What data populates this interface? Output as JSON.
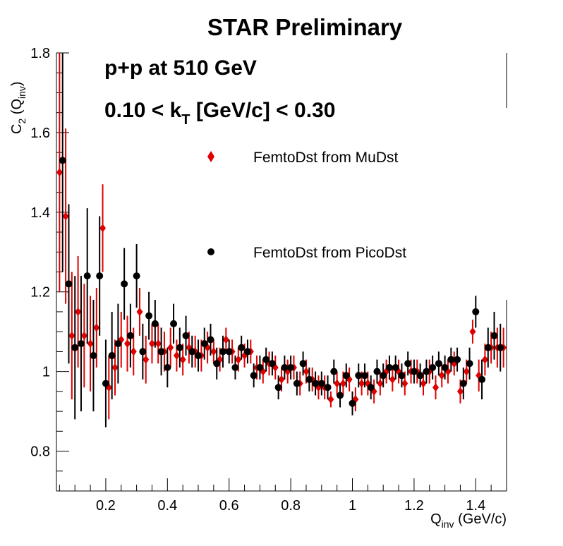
{
  "chart_data": {
    "type": "scatter",
    "title": "STAR Preliminary",
    "annotations": {
      "line1": "p+p at 510 GeV",
      "line2_pre": "0.10 < k",
      "line2_sub": "T",
      "line2_post": " [GeV/c] < 0.30"
    },
    "xlabel": {
      "main": "Q",
      "sub": "inv",
      "rest": " (GeV/c)"
    },
    "ylabel": {
      "main": "C",
      "sub2": "2",
      "mid": " (Q",
      "sub": "inv",
      "rest": ")"
    },
    "xlim": [
      0.04,
      1.5
    ],
    "ylim": [
      0.7,
      1.8
    ],
    "xticks": [
      0.2,
      0.4,
      0.6,
      0.8,
      1.0,
      1.2,
      1.4
    ],
    "xtick_labels": [
      "0.2",
      "0.4",
      "0.6",
      "0.8",
      "1",
      "1.2",
      "1.4"
    ],
    "yticks": [
      0.8,
      1.0,
      1.2,
      1.4,
      1.6,
      1.8
    ],
    "ytick_labels": [
      "0.8",
      "1",
      "1.2",
      "1.4",
      "1.6",
      "1.8"
    ],
    "legend_position": "right, upper-middle",
    "series": [
      {
        "name": "FemtoDst from MuDst",
        "marker": "diamond",
        "color": "#e00000",
        "x": [
          0.05,
          0.07,
          0.09,
          0.11,
          0.13,
          0.15,
          0.17,
          0.19,
          0.21,
          0.23,
          0.25,
          0.27,
          0.29,
          0.31,
          0.33,
          0.35,
          0.37,
          0.39,
          0.41,
          0.43,
          0.45,
          0.47,
          0.49,
          0.51,
          0.53,
          0.55,
          0.57,
          0.59,
          0.61,
          0.63,
          0.65,
          0.67,
          0.69,
          0.71,
          0.73,
          0.75,
          0.77,
          0.79,
          0.81,
          0.83,
          0.85,
          0.87,
          0.89,
          0.91,
          0.93,
          0.95,
          0.97,
          0.99,
          1.01,
          1.03,
          1.05,
          1.07,
          1.09,
          1.11,
          1.13,
          1.15,
          1.17,
          1.19,
          1.21,
          1.23,
          1.25,
          1.27,
          1.29,
          1.31,
          1.33,
          1.35,
          1.37,
          1.39,
          1.41,
          1.43,
          1.45,
          1.47,
          1.49
        ],
        "y": [
          1.5,
          1.39,
          1.09,
          1.15,
          1.09,
          1.07,
          1.11,
          1.36,
          0.96,
          1.01,
          1.08,
          1.07,
          1.05,
          1.15,
          1.03,
          1.07,
          1.07,
          1.05,
          1.06,
          1.04,
          1.03,
          1.06,
          1.05,
          1.04,
          1.06,
          1.05,
          1.03,
          1.08,
          1.05,
          1.03,
          1.04,
          1.05,
          1.01,
          1.0,
          1.02,
          1.01,
          0.98,
          1.0,
          1.01,
          0.97,
          1.0,
          0.98,
          0.96,
          0.96,
          0.93,
          0.97,
          0.97,
          0.98,
          0.93,
          0.97,
          0.97,
          0.95,
          0.97,
          1.0,
          0.98,
          1.0,
          0.97,
          1.0,
          1.0,
          0.97,
          1.0,
          0.96,
          0.99,
          1.0,
          1.02,
          0.95,
          1.0,
          1.1,
          0.99,
          1.03,
          1.06,
          1.06,
          1.06
        ],
        "err": [
          0.3,
          0.22,
          0.16,
          0.14,
          0.13,
          0.12,
          0.1,
          0.11,
          0.08,
          0.07,
          0.07,
          0.07,
          0.06,
          0.06,
          0.06,
          0.05,
          0.05,
          0.05,
          0.05,
          0.04,
          0.04,
          0.04,
          0.04,
          0.04,
          0.04,
          0.03,
          0.03,
          0.03,
          0.03,
          0.03,
          0.03,
          0.03,
          0.03,
          0.03,
          0.03,
          0.03,
          0.03,
          0.03,
          0.03,
          0.03,
          0.03,
          0.03,
          0.03,
          0.03,
          0.02,
          0.03,
          0.03,
          0.03,
          0.03,
          0.03,
          0.03,
          0.03,
          0.03,
          0.03,
          0.03,
          0.03,
          0.03,
          0.03,
          0.03,
          0.03,
          0.03,
          0.03,
          0.03,
          0.03,
          0.03,
          0.03,
          0.03,
          0.03,
          0.04,
          0.04,
          0.04,
          0.05,
          0.05
        ]
      },
      {
        "name": "FemtoDst from PicoDst",
        "marker": "circle",
        "color": "#000000",
        "x": [
          0.06,
          0.08,
          0.1,
          0.12,
          0.14,
          0.16,
          0.18,
          0.2,
          0.22,
          0.24,
          0.26,
          0.28,
          0.3,
          0.32,
          0.34,
          0.36,
          0.38,
          0.4,
          0.42,
          0.44,
          0.46,
          0.48,
          0.5,
          0.52,
          0.54,
          0.56,
          0.58,
          0.6,
          0.62,
          0.64,
          0.66,
          0.68,
          0.7,
          0.72,
          0.74,
          0.76,
          0.78,
          0.8,
          0.82,
          0.84,
          0.86,
          0.88,
          0.9,
          0.92,
          0.94,
          0.96,
          0.98,
          1.0,
          1.02,
          1.04,
          1.06,
          1.08,
          1.1,
          1.12,
          1.14,
          1.16,
          1.18,
          1.2,
          1.22,
          1.24,
          1.26,
          1.28,
          1.3,
          1.32,
          1.34,
          1.36,
          1.38,
          1.4,
          1.42,
          1.44,
          1.46,
          1.48
        ],
        "y": [
          1.53,
          1.22,
          1.06,
          1.07,
          1.24,
          1.04,
          1.24,
          0.97,
          1.04,
          1.07,
          1.22,
          1.09,
          1.24,
          1.05,
          1.14,
          1.12,
          1.05,
          1.01,
          1.12,
          1.06,
          1.09,
          1.05,
          1.04,
          1.07,
          1.08,
          1.02,
          1.05,
          1.05,
          1.01,
          1.06,
          1.05,
          0.99,
          1.01,
          1.03,
          1.02,
          0.96,
          1.01,
          1.01,
          0.97,
          1.02,
          0.98,
          0.97,
          0.97,
          0.96,
          1.0,
          0.94,
          0.99,
          0.92,
          0.99,
          0.99,
          0.96,
          1.0,
          0.99,
          1.01,
          1.01,
          0.99,
          1.02,
          1.0,
          0.99,
          1.0,
          1.01,
          1.02,
          1.01,
          1.03,
          1.03,
          0.97,
          1.02,
          1.15,
          0.98,
          1.06,
          1.09,
          1.06
        ],
        "err": [
          0.28,
          0.2,
          0.18,
          0.17,
          0.17,
          0.14,
          0.15,
          0.11,
          0.11,
          0.1,
          0.09,
          0.08,
          0.08,
          0.07,
          0.06,
          0.06,
          0.06,
          0.05,
          0.05,
          0.05,
          0.05,
          0.04,
          0.04,
          0.04,
          0.04,
          0.04,
          0.04,
          0.03,
          0.03,
          0.03,
          0.03,
          0.03,
          0.03,
          0.03,
          0.03,
          0.03,
          0.03,
          0.03,
          0.03,
          0.03,
          0.03,
          0.03,
          0.03,
          0.03,
          0.03,
          0.03,
          0.03,
          0.03,
          0.03,
          0.03,
          0.03,
          0.03,
          0.03,
          0.03,
          0.03,
          0.03,
          0.03,
          0.03,
          0.03,
          0.03,
          0.03,
          0.03,
          0.03,
          0.03,
          0.03,
          0.04,
          0.04,
          0.04,
          0.05,
          0.05,
          0.06,
          0.06
        ]
      }
    ]
  }
}
